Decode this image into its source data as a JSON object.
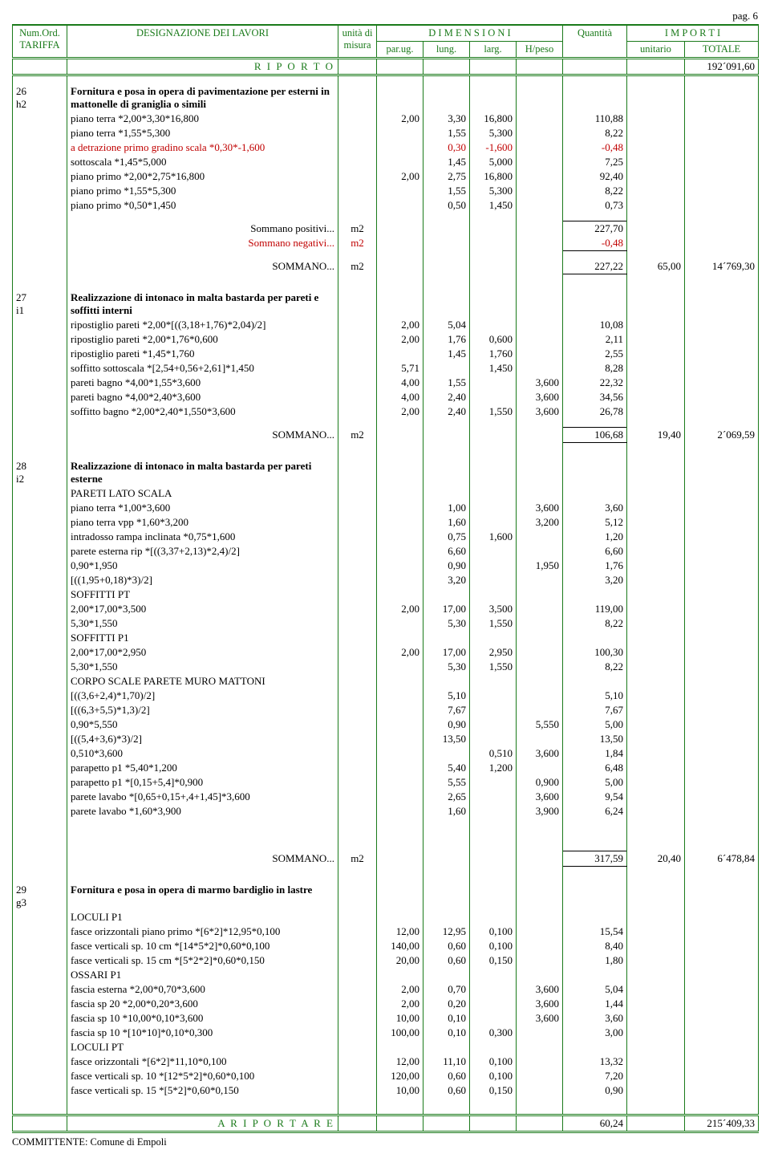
{
  "page_label": "pag. 6",
  "footer": "COMMITTENTE: Comune di Empoli",
  "headers": {
    "tariffa": "Num.Ord. TARIFFA",
    "designazione": "DESIGNAZIONE DEI LAVORI",
    "unita": "unità di misura",
    "dimensioni": "D I M E N S I O N I",
    "parug": "par.ug.",
    "lung": "lung.",
    "larg": "larg.",
    "hpeso": "H/peso",
    "quantita": "Quantità",
    "importi": "I M P O R T I",
    "unitario": "unitario",
    "totale": "TOTALE",
    "riporto": "R I P O R T O",
    "riportare": "A  R I P O R T A R E"
  },
  "riporto_totale": "192´091,60",
  "riportare_qty": "60,24",
  "riportare_totale": "215´409,33",
  "colors": {
    "border": "#1a7a1a",
    "green_text": "#1a7a1a",
    "red_text": "#c00000",
    "black": "#000000",
    "bg": "#ffffff"
  },
  "items": [
    {
      "num": "26",
      "code": "h2",
      "title": "Fornitura e posa in opera di pavimentazione per esterni in mattonelle di graniglia o simili",
      "rows": [
        {
          "d": "piano terra *2,00*3,30*16,800",
          "pu": "2,00",
          "lu": "3,30",
          "la": "16,800",
          "hp": "",
          "q": "110,88"
        },
        {
          "d": "piano terra *1,55*5,300",
          "pu": "",
          "lu": "1,55",
          "la": "5,300",
          "hp": "",
          "q": "8,22"
        },
        {
          "d": "a detrazione primo gradino scala *0,30*-1,600",
          "pu": "",
          "lu": "0,30",
          "la": "-1,600",
          "hp": "",
          "q": "-0,48",
          "neg": true
        },
        {
          "d": "sottoscala *1,45*5,000",
          "pu": "",
          "lu": "1,45",
          "la": "5,000",
          "hp": "",
          "q": "7,25"
        },
        {
          "d": "piano primo *2,00*2,75*16,800",
          "pu": "2,00",
          "lu": "2,75",
          "la": "16,800",
          "hp": "",
          "q": "92,40"
        },
        {
          "d": "piano primo *1,55*5,300",
          "pu": "",
          "lu": "1,55",
          "la": "5,300",
          "hp": "",
          "q": "8,22"
        },
        {
          "d": "piano primo *0,50*1,450",
          "pu": "",
          "lu": "0,50",
          "la": "1,450",
          "hp": "",
          "q": "0,73"
        }
      ],
      "sommano_pos_label": "Sommano positivi...",
      "sommano_pos_um": "m2",
      "sommano_pos_q": "227,70",
      "sommano_neg_label": "Sommano negativi...",
      "sommano_neg_um": "m2",
      "sommano_neg_q": "-0,48",
      "sommano_label": "SOMMANO...",
      "um": "m2",
      "qty": "227,22",
      "unit": "65,00",
      "tot": "14´769,30"
    },
    {
      "num": "27",
      "code": "i1",
      "title": "Realizzazione di intonaco in malta bastarda per pareti e soffitti interni",
      "rows": [
        {
          "d": "ripostiglio pareti *2,00*[((3,18+1,76)*2,04)/2]",
          "pu": "2,00",
          "lu": "5,04",
          "la": "",
          "hp": "",
          "q": "10,08"
        },
        {
          "d": "ripostiglio pareti *2,00*1,76*0,600",
          "pu": "2,00",
          "lu": "1,76",
          "la": "0,600",
          "hp": "",
          "q": "2,11"
        },
        {
          "d": "ripostiglio pareti *1,45*1,760",
          "pu": "",
          "lu": "1,45",
          "la": "1,760",
          "hp": "",
          "q": "2,55"
        },
        {
          "d": "soffitto sottoscala *[2,54+0,56+2,61]*1,450",
          "pu": "5,71",
          "lu": "",
          "la": "1,450",
          "hp": "",
          "q": "8,28"
        },
        {
          "d": "pareti bagno *4,00*1,55*3,600",
          "pu": "4,00",
          "lu": "1,55",
          "la": "",
          "hp": "3,600",
          "q": "22,32"
        },
        {
          "d": "pareti bagno *4,00*2,40*3,600",
          "pu": "4,00",
          "lu": "2,40",
          "la": "",
          "hp": "3,600",
          "q": "34,56"
        },
        {
          "d": "soffitto bagno *2,00*2,40*1,550*3,600",
          "pu": "2,00",
          "lu": "2,40",
          "la": "1,550",
          "hp": "3,600",
          "q": "26,78"
        }
      ],
      "sommano_label": "SOMMANO...",
      "um": "m2",
      "qty": "106,68",
      "unit": "19,40",
      "tot": "2´069,59"
    },
    {
      "num": "28",
      "code": "i2",
      "title": "Realizzazione di intonaco in malta bastarda per pareti esterne",
      "rows": [
        {
          "d": "PARETI LATO SCALA"
        },
        {
          "d": "piano terra *1,00*3,600",
          "pu": "",
          "lu": "1,00",
          "la": "",
          "hp": "3,600",
          "q": "3,60"
        },
        {
          "d": "piano terra vpp *1,60*3,200",
          "pu": "",
          "lu": "1,60",
          "la": "",
          "hp": "3,200",
          "q": "5,12"
        },
        {
          "d": "intradosso rampa inclinata *0,75*1,600",
          "pu": "",
          "lu": "0,75",
          "la": "1,600",
          "hp": "",
          "q": "1,20"
        },
        {
          "d": "parete esterna rip *[((3,37+2,13)*2,4)/2]",
          "pu": "",
          "lu": "6,60",
          "la": "",
          "hp": "",
          "q": "6,60"
        },
        {
          "d": "0,90*1,950",
          "pu": "",
          "lu": "0,90",
          "la": "",
          "hp": "1,950",
          "q": "1,76"
        },
        {
          "d": "[((1,95+0,18)*3)/2]",
          "pu": "",
          "lu": "3,20",
          "la": "",
          "hp": "",
          "q": "3,20"
        },
        {
          "d": "SOFFITTI PT"
        },
        {
          "d": "2,00*17,00*3,500",
          "pu": "2,00",
          "lu": "17,00",
          "la": "3,500",
          "hp": "",
          "q": "119,00"
        },
        {
          "d": "5,30*1,550",
          "pu": "",
          "lu": "5,30",
          "la": "1,550",
          "hp": "",
          "q": "8,22"
        },
        {
          "d": "SOFFITTI P1"
        },
        {
          "d": "2,00*17,00*2,950",
          "pu": "2,00",
          "lu": "17,00",
          "la": "2,950",
          "hp": "",
          "q": "100,30"
        },
        {
          "d": "5,30*1,550",
          "pu": "",
          "lu": "5,30",
          "la": "1,550",
          "hp": "",
          "q": "8,22"
        },
        {
          "d": "CORPO SCALE PARETE MURO MATTONI"
        },
        {
          "d": "[((3,6+2,4)*1,70)/2]",
          "pu": "",
          "lu": "5,10",
          "la": "",
          "hp": "",
          "q": "5,10"
        },
        {
          "d": "[((6,3+5,5)*1,3)/2]",
          "pu": "",
          "lu": "7,67",
          "la": "",
          "hp": "",
          "q": "7,67"
        },
        {
          "d": "0,90*5,550",
          "pu": "",
          "lu": "0,90",
          "la": "",
          "hp": "5,550",
          "q": "5,00"
        },
        {
          "d": "[((5,4+3,6)*3)/2]",
          "pu": "",
          "lu": "13,50",
          "la": "",
          "hp": "",
          "q": "13,50"
        },
        {
          "d": "0,510*3,600",
          "pu": "",
          "lu": "",
          "la": "0,510",
          "hp": "3,600",
          "q": "1,84"
        },
        {
          "d": "parapetto p1 *5,40*1,200",
          "pu": "",
          "lu": "5,40",
          "la": "1,200",
          "hp": "",
          "q": "6,48"
        },
        {
          "d": "parapetto p1 *[0,15+5,4]*0,900",
          "pu": "",
          "lu": "5,55",
          "la": "",
          "hp": "0,900",
          "q": "5,00"
        },
        {
          "d": "parete lavabo *[0,65+0,15+,4+1,45]*3,600",
          "pu": "",
          "lu": "2,65",
          "la": "",
          "hp": "3,600",
          "q": "9,54"
        },
        {
          "d": "parete lavabo *1,60*3,900",
          "pu": "",
          "lu": "1,60",
          "la": "",
          "hp": "3,900",
          "q": "6,24"
        }
      ],
      "extra_space": true,
      "sommano_label": "SOMMANO...",
      "um": "m2",
      "qty": "317,59",
      "unit": "20,40",
      "tot": "6´478,84"
    },
    {
      "num": "29",
      "code": "g3",
      "title": "Fornitura e posa in opera di marmo bardiglio in lastre",
      "rows": [
        {
          "d": "LOCULI P1"
        },
        {
          "d": "fasce orizzontali piano primo *[6*2]*12,95*0,100",
          "pu": "12,00",
          "lu": "12,95",
          "la": "0,100",
          "hp": "",
          "q": "15,54"
        },
        {
          "d": "fasce verticali sp. 10 cm *[14*5*2]*0,60*0,100",
          "pu": "140,00",
          "lu": "0,60",
          "la": "0,100",
          "hp": "",
          "q": "8,40"
        },
        {
          "d": "fasce verticali sp. 15 cm *[5*2*2]*0,60*0,150",
          "pu": "20,00",
          "lu": "0,60",
          "la": "0,150",
          "hp": "",
          "q": "1,80"
        },
        {
          "d": "OSSARI P1"
        },
        {
          "d": "fascia esterna *2,00*0,70*3,600",
          "pu": "2,00",
          "lu": "0,70",
          "la": "",
          "hp": "3,600",
          "q": "5,04"
        },
        {
          "d": "fascia sp 20 *2,00*0,20*3,600",
          "pu": "2,00",
          "lu": "0,20",
          "la": "",
          "hp": "3,600",
          "q": "1,44"
        },
        {
          "d": "fascia sp 10 *10,00*0,10*3,600",
          "pu": "10,00",
          "lu": "0,10",
          "la": "",
          "hp": "3,600",
          "q": "3,60"
        },
        {
          "d": "fascia sp 10 *[10*10]*0,10*0,300",
          "pu": "100,00",
          "lu": "0,10",
          "la": "0,300",
          "hp": "",
          "q": "3,00"
        },
        {
          "d": "LOCULI PT"
        },
        {
          "d": "fasce orizzontali *[6*2]*11,10*0,100",
          "pu": "12,00",
          "lu": "11,10",
          "la": "0,100",
          "hp": "",
          "q": "13,32"
        },
        {
          "d": "fasce verticali sp. 10 *[12*5*2]*0,60*0,100",
          "pu": "120,00",
          "lu": "0,60",
          "la": "0,100",
          "hp": "",
          "q": "7,20"
        },
        {
          "d": "fasce verticali sp. 15 *[5*2]*0,60*0,150",
          "pu": "10,00",
          "lu": "0,60",
          "la": "0,150",
          "hp": "",
          "q": "0,90"
        }
      ]
    }
  ]
}
